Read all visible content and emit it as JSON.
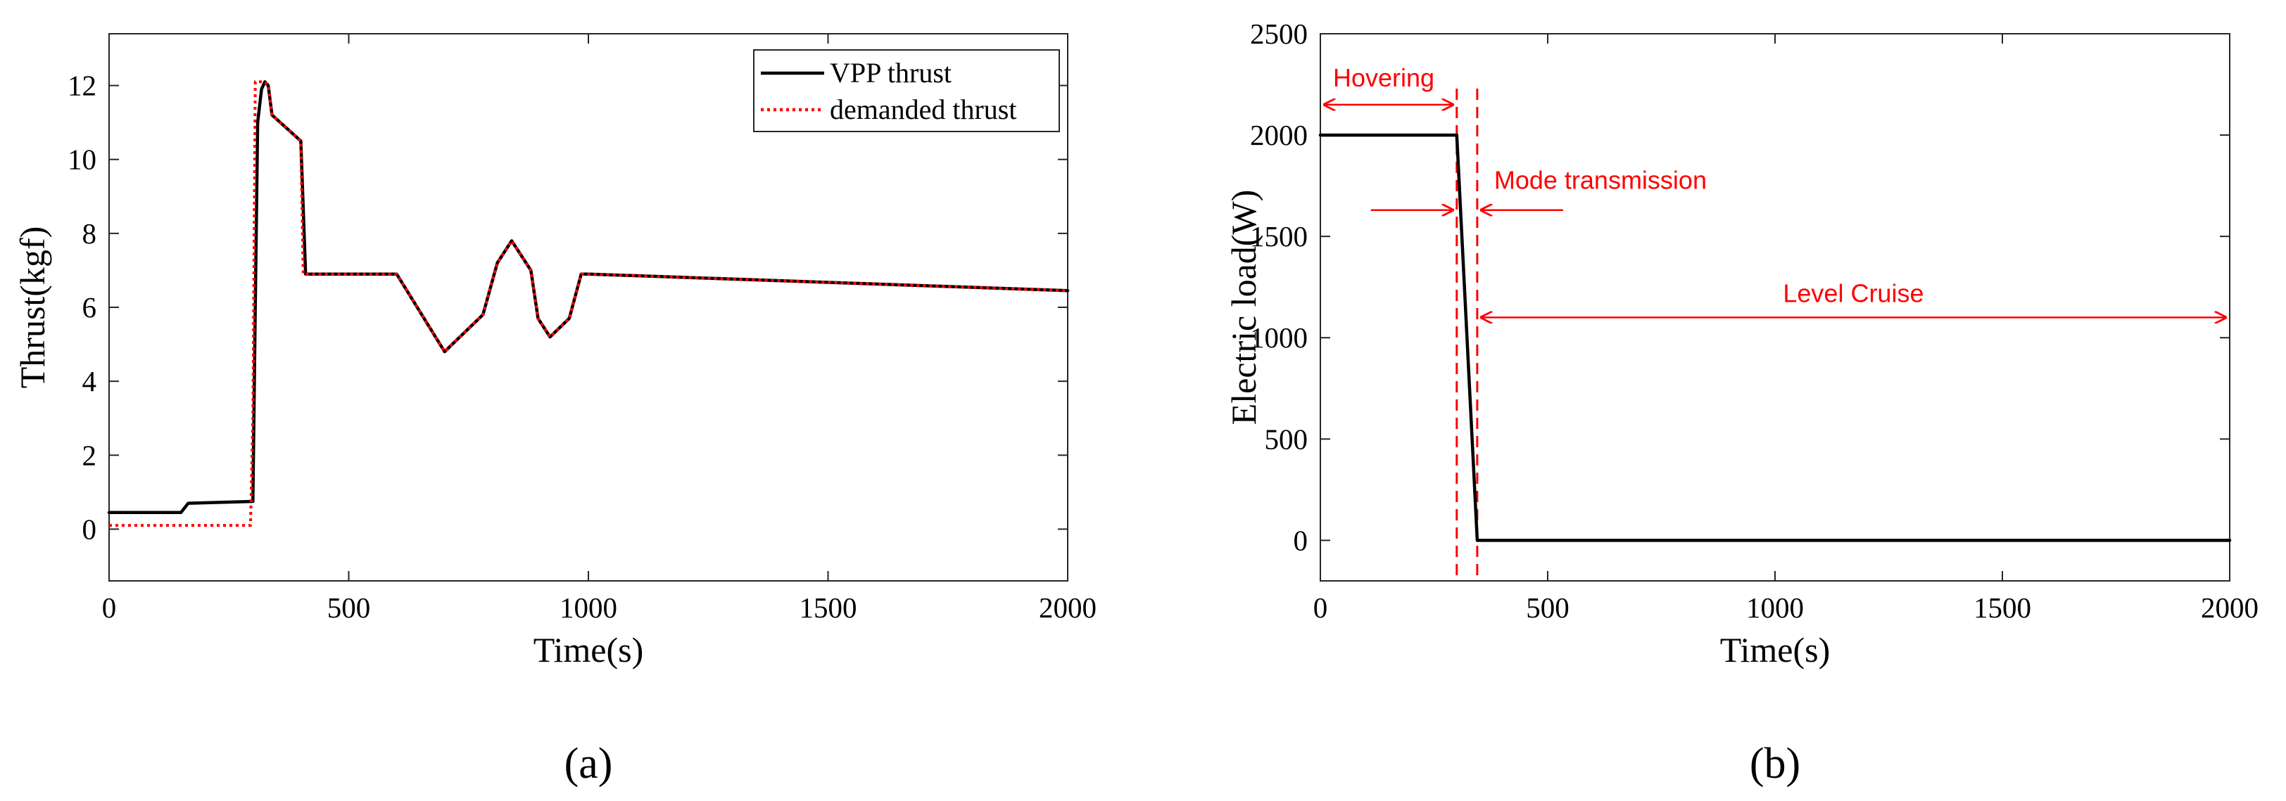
{
  "chart_data": [
    {
      "type": "line",
      "panel_label": "(a)",
      "xlabel": "Time(s)",
      "ylabel": "Thrust(kgf)",
      "xlim": [
        0,
        2000
      ],
      "ylim": [
        -1.4,
        13.4
      ],
      "xticks": [
        0,
        500,
        1000,
        1500,
        2000
      ],
      "yticks": [
        0,
        2,
        4,
        6,
        8,
        10,
        12
      ],
      "grid": false,
      "legend_position": "top-right",
      "series": [
        {
          "name": "VPP thrust",
          "color": "#000000",
          "style": "solid",
          "x": [
            0,
            150,
            165,
            300,
            305,
            310,
            318,
            325,
            332,
            340,
            400,
            410,
            600,
            700,
            780,
            810,
            840,
            880,
            895,
            920,
            960,
            985,
            1000,
            2000
          ],
          "y": [
            0.45,
            0.45,
            0.7,
            0.75,
            6.0,
            11.0,
            11.9,
            12.1,
            12.0,
            11.2,
            10.5,
            6.9,
            6.9,
            4.8,
            5.8,
            7.2,
            7.8,
            7.0,
            5.7,
            5.2,
            5.7,
            6.9,
            6.9,
            6.45
          ]
        },
        {
          "name": "demanded thrust",
          "color": "#ff0000",
          "style": "dotted",
          "x": [
            0,
            295,
            300,
            305,
            312,
            318,
            325,
            332,
            340,
            400,
            405,
            600,
            700,
            780,
            810,
            840,
            880,
            895,
            920,
            960,
            985,
            1000,
            2000
          ],
          "y": [
            0.1,
            0.1,
            3.0,
            12.1,
            12.1,
            12.1,
            12.1,
            12.0,
            11.2,
            10.5,
            6.9,
            6.9,
            4.8,
            5.8,
            7.2,
            7.8,
            7.0,
            5.7,
            5.2,
            5.7,
            6.9,
            6.9,
            6.45
          ]
        }
      ]
    },
    {
      "type": "line",
      "panel_label": "(b)",
      "xlabel": "Time(s)",
      "ylabel": "Electric load(W)",
      "xlim": [
        0,
        2000
      ],
      "ylim": [
        -200,
        2500
      ],
      "xticks": [
        0,
        500,
        1000,
        1500,
        2000
      ],
      "yticks": [
        0,
        500,
        1000,
        1500,
        2000,
        2500
      ],
      "grid": false,
      "series": [
        {
          "color": "#000000",
          "style": "solid",
          "x": [
            0,
            300,
            345,
            2000
          ],
          "y": [
            2000,
            2000,
            0,
            0
          ]
        }
      ],
      "vlines": [
        300,
        345
      ],
      "annotations": [
        {
          "text": "Hovering",
          "from": 0,
          "to": 300,
          "y": 2150
        },
        {
          "text": "Mode transmission",
          "from": 300,
          "to": 345,
          "y": 1630
        },
        {
          "text": "Level Cruise",
          "from": 345,
          "to": 2000,
          "y": 1100
        }
      ]
    }
  ]
}
